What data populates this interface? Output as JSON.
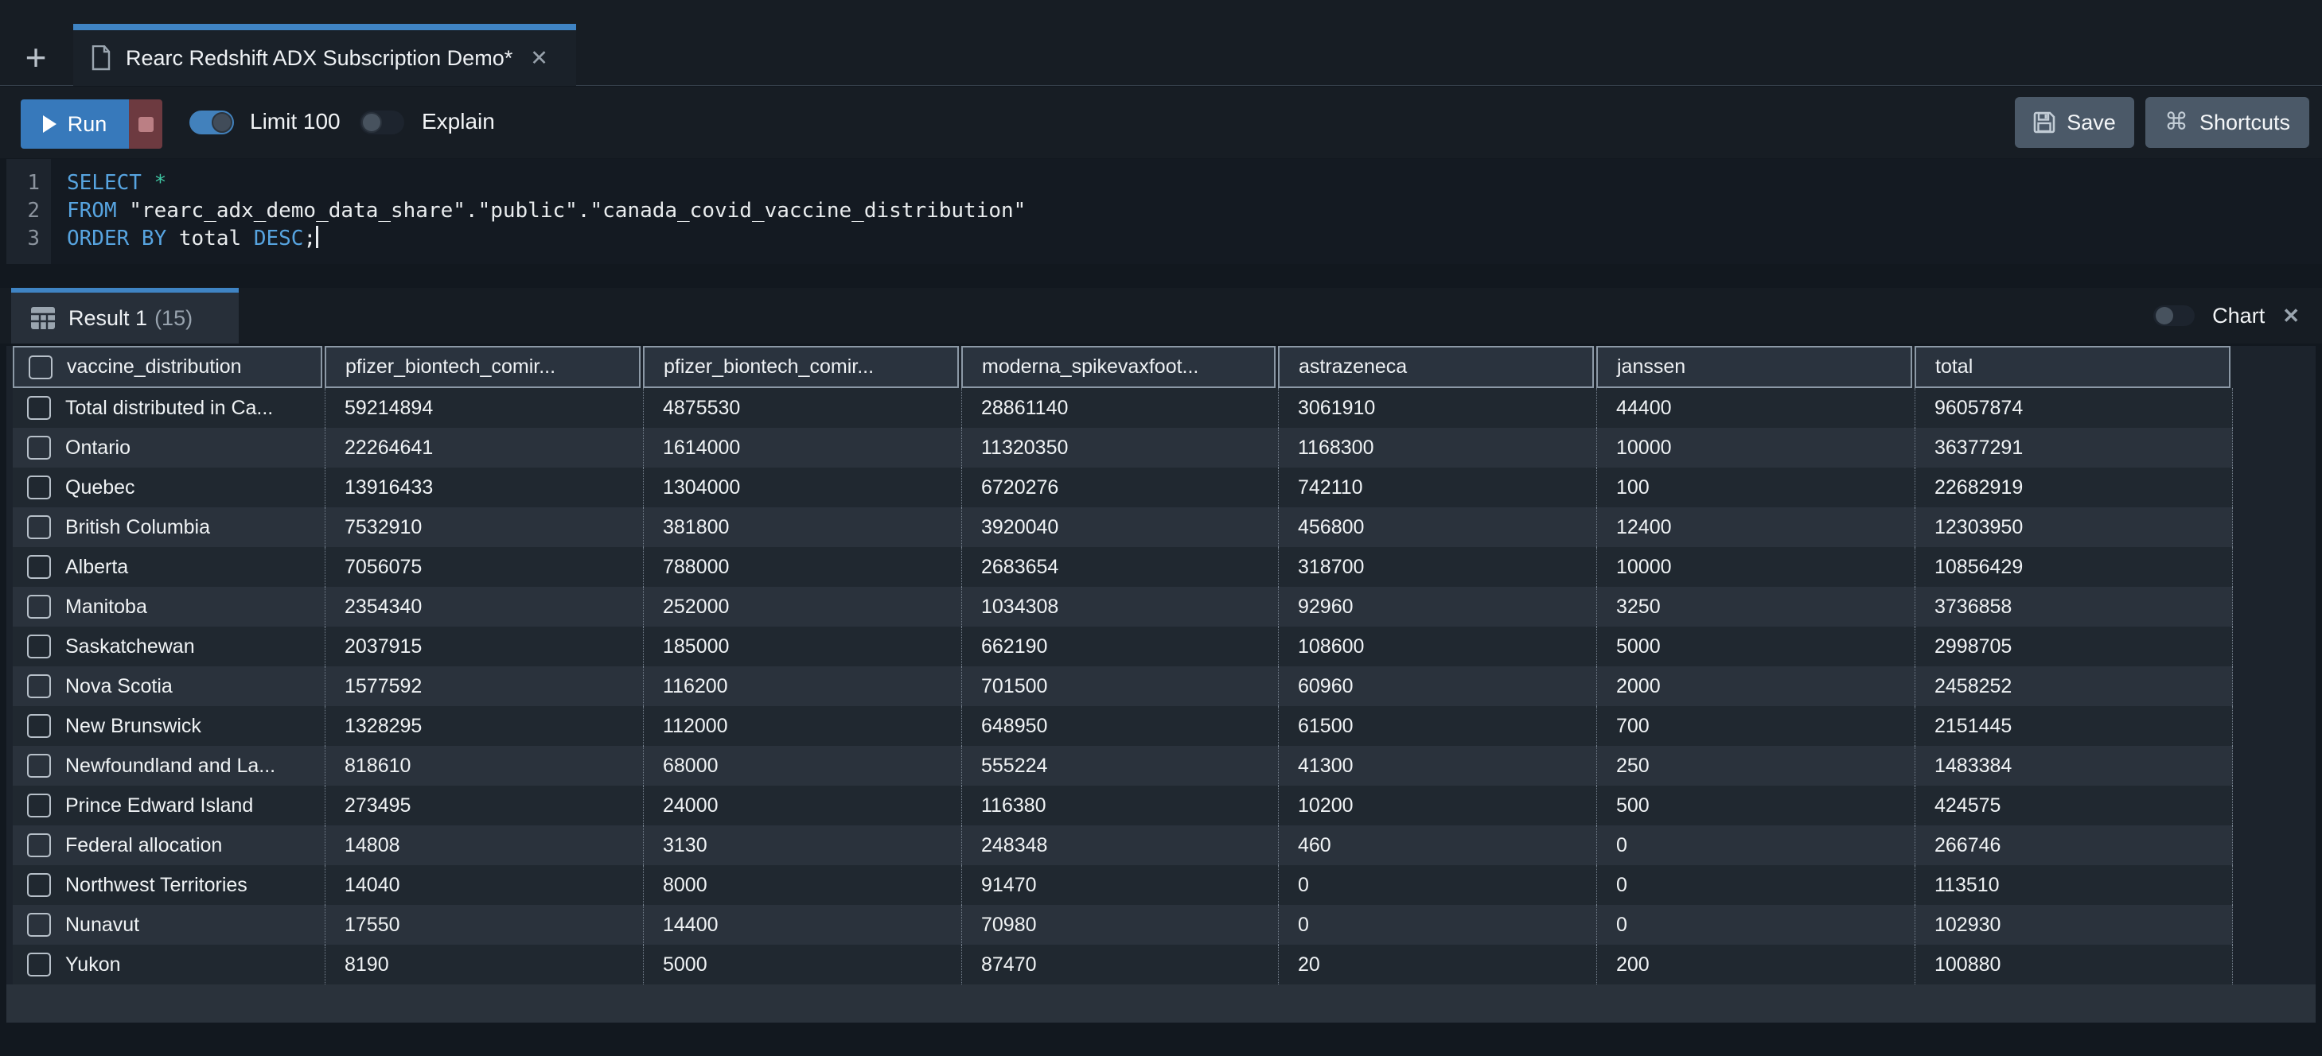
{
  "tab_bar": {
    "new_tab": "+",
    "title": "Rearc Redshift ADX Subscription Demo*",
    "close": "✕"
  },
  "toolbar": {
    "run": "Run",
    "limit": "Limit 100",
    "limit_on": true,
    "explain": "Explain",
    "explain_on": false,
    "save": "Save",
    "shortcuts": "Shortcuts",
    "shortcuts_icon": "⌘"
  },
  "editor": {
    "cursor_line": 3,
    "lines": [
      [
        {
          "t": "kw",
          "v": "SELECT"
        },
        {
          "t": "pl",
          "v": " "
        },
        {
          "t": "op",
          "v": "*"
        }
      ],
      [
        {
          "t": "kw",
          "v": "FROM"
        },
        {
          "t": "pl",
          "v": " \"rearc_adx_demo_data_share\".\"public\".\"canada_covid_vaccine_distribution\""
        }
      ],
      [
        {
          "t": "kw",
          "v": "ORDER BY"
        },
        {
          "t": "pl",
          "v": " total "
        },
        {
          "t": "kw",
          "v": "DESC"
        },
        {
          "t": "pl",
          "v": ";"
        }
      ]
    ]
  },
  "results": {
    "tab": "Result 1",
    "count": "(15)",
    "chart": "Chart",
    "chart_on": false,
    "close": "✕"
  },
  "table": {
    "columns": [
      "vaccine_distribution",
      "pfizer_biontech_comir...",
      "pfizer_biontech_comir...",
      "moderna_spikevaxfoot...",
      "astrazeneca",
      "janssen",
      "total"
    ],
    "rows": [
      [
        "Total distributed in Ca...",
        "59214894",
        "4875530",
        "28861140",
        "3061910",
        "44400",
        "96057874"
      ],
      [
        "Ontario",
        "22264641",
        "1614000",
        "11320350",
        "1168300",
        "10000",
        "36377291"
      ],
      [
        "Quebec",
        "13916433",
        "1304000",
        "6720276",
        "742110",
        "100",
        "22682919"
      ],
      [
        "British Columbia",
        "7532910",
        "381800",
        "3920040",
        "456800",
        "12400",
        "12303950"
      ],
      [
        "Alberta",
        "7056075",
        "788000",
        "2683654",
        "318700",
        "10000",
        "10856429"
      ],
      [
        "Manitoba",
        "2354340",
        "252000",
        "1034308",
        "92960",
        "3250",
        "3736858"
      ],
      [
        "Saskatchewan",
        "2037915",
        "185000",
        "662190",
        "108600",
        "5000",
        "2998705"
      ],
      [
        "Nova Scotia",
        "1577592",
        "116200",
        "701500",
        "60960",
        "2000",
        "2458252"
      ],
      [
        "New Brunswick",
        "1328295",
        "112000",
        "648950",
        "61500",
        "700",
        "2151445"
      ],
      [
        "Newfoundland and La...",
        "818610",
        "68000",
        "555224",
        "41300",
        "250",
        "1483384"
      ],
      [
        "Prince Edward Island",
        "273495",
        "24000",
        "116380",
        "10200",
        "500",
        "424575"
      ],
      [
        "Federal allocation",
        "14808",
        "3130",
        "248348",
        "460",
        "0",
        "266746"
      ],
      [
        "Northwest Territories",
        "14040",
        "8000",
        "91470",
        "0",
        "0",
        "113510"
      ],
      [
        "Nunavut",
        "17550",
        "14400",
        "70980",
        "0",
        "0",
        "102930"
      ],
      [
        "Yukon",
        "8190",
        "5000",
        "87470",
        "20",
        "200",
        "100880"
      ]
    ]
  },
  "colors": {
    "accent_blue": "#3f84c4",
    "run_blue": "#3779bb",
    "stop_red": "#6d3a40",
    "header_border": "#8c99a6",
    "row_odd": "#202830",
    "row_even": "#2a323c"
  }
}
